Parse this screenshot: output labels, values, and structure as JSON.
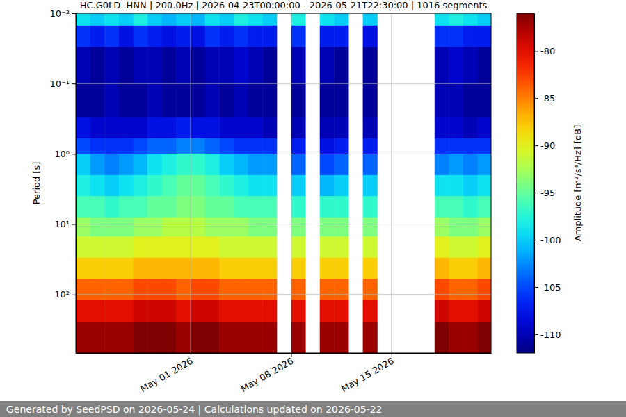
{
  "chart_data": {
    "type": "heatmap",
    "title": "HC.G0LD..HNN | 200.0Hz | 2026-04-23T00:00:00 - 2026-05-21T22:30:00 | 1016 segments",
    "y_label": "Period [s]",
    "colorbar_label": "Amplitude [m²/s⁴/Hz] [dB]",
    "footer": "Generated by SeedPSD on 2026-05-24 | Calculations updated on 2026-05-22",
    "log": "y",
    "grid": true,
    "xlim": [
      "2026-04-23T00:00:00",
      "2026-05-21T22:30:00"
    ],
    "xticks": [
      {
        "value": "2026-05-01T00:00:00",
        "label": "May 01 2026"
      },
      {
        "value": "2026-05-08T00:00:00",
        "label": "May 08 2026"
      },
      {
        "value": "2026-05-15T00:00:00",
        "label": "May 15 2026"
      }
    ],
    "ylim": [
      0.01,
      680
    ],
    "yticks": [
      {
        "value": 0.01,
        "label": "10⁻²"
      },
      {
        "value": 0.1,
        "label": "10⁻¹"
      },
      {
        "value": 1,
        "label": "10⁰"
      },
      {
        "value": 10,
        "label": "10¹"
      },
      {
        "value": 100,
        "label": "10²"
      }
    ],
    "x": [
      "2026-04-23T00:00:00",
      "2026-04-24T00:00:00",
      "2026-04-25T00:00:00",
      "2026-04-26T00:00:00",
      "2026-04-27T00:00:00",
      "2026-04-28T00:00:00",
      "2026-04-29T00:00:00",
      "2026-04-30T00:00:00",
      "2026-05-01T00:00:00",
      "2026-05-02T00:00:00",
      "2026-05-03T00:00:00",
      "2026-05-04T00:00:00",
      "2026-05-05T00:00:00",
      "2026-05-06T00:00:00",
      "2026-05-07T00:00:00",
      "2026-05-08T00:00:00",
      "2026-05-09T00:00:00",
      "2026-05-10T00:00:00",
      "2026-05-11T00:00:00",
      "2026-05-12T00:00:00",
      "2026-05-13T00:00:00",
      "2026-05-14T00:00:00",
      "2026-05-15T00:00:00",
      "2026-05-16T00:00:00",
      "2026-05-17T00:00:00",
      "2026-05-18T00:00:00",
      "2026-05-19T00:00:00",
      "2026-05-20T00:00:00",
      "2026-05-21T00:00:00"
    ],
    "y_edges": [
      0.01,
      0.015,
      0.03,
      0.1,
      0.3,
      0.6,
      1,
      2,
      4,
      8,
      15,
      30,
      60,
      120,
      250,
      680
    ],
    "cells": [
      [
        -99,
        -100,
        -99,
        -100,
        -98,
        -100,
        -101,
        -100,
        -101,
        -99,
        -100,
        -98,
        -99,
        -100,
        null,
        -98,
        null,
        -99,
        -100,
        null,
        -100,
        null,
        null,
        null,
        null,
        -99,
        -98,
        -99,
        -100
      ],
      [
        -106,
        -107,
        -106,
        -108,
        -106,
        -107,
        -108,
        -107,
        -108,
        -106,
        -107,
        -106,
        -107,
        -107,
        null,
        -106,
        null,
        -107,
        -107,
        null,
        -108,
        null,
        null,
        null,
        null,
        -106,
        -106,
        -107,
        -107
      ],
      [
        -110,
        -111,
        -110,
        -111,
        -110,
        -110,
        -111,
        -110,
        -111,
        -110,
        -110,
        -109,
        -110,
        -111,
        null,
        -110,
        null,
        -110,
        -111,
        null,
        -111,
        null,
        null,
        null,
        null,
        -110,
        -109,
        -110,
        -111
      ],
      [
        -111,
        -111,
        -110,
        -111,
        -111,
        -110,
        -111,
        -111,
        -111,
        -110,
        -111,
        -110,
        -111,
        -111,
        null,
        -111,
        null,
        -111,
        -111,
        null,
        -111,
        null,
        null,
        null,
        null,
        -110,
        -110,
        -111,
        -111
      ],
      [
        -108,
        -109,
        -109,
        -109,
        -109,
        -108,
        -108,
        -107,
        -108,
        -108,
        -109,
        -109,
        -109,
        -110,
        null,
        -110,
        null,
        -110,
        -110,
        null,
        -110,
        null,
        null,
        null,
        null,
        -109,
        -109,
        -110,
        -109
      ],
      [
        -105,
        -106,
        -106,
        -106,
        -105,
        -104,
        -104,
        -103,
        -103,
        -104,
        -105,
        -106,
        -106,
        -106,
        null,
        -107,
        null,
        -108,
        -107,
        null,
        -107,
        null,
        null,
        null,
        null,
        -106,
        -106,
        -106,
        -106
      ],
      [
        -100,
        -102,
        -103,
        -102,
        -101,
        -99,
        -98,
        -97,
        -97,
        -98,
        -100,
        -101,
        -102,
        -102,
        null,
        -104,
        null,
        -105,
        -104,
        null,
        -104,
        null,
        null,
        null,
        null,
        -103,
        -102,
        -103,
        -102
      ],
      [
        -98,
        -99,
        -100,
        -99,
        -98,
        -97,
        -96,
        -95,
        -95,
        -96,
        -97,
        -98,
        -99,
        -99,
        null,
        -100,
        null,
        -101,
        -100,
        null,
        -100,
        null,
        null,
        null,
        null,
        -99,
        -99,
        -100,
        -99
      ],
      [
        -96,
        -96,
        -97,
        -96,
        -96,
        -95,
        -95,
        -94,
        -94,
        -95,
        -95,
        -96,
        -96,
        -96,
        null,
        -97,
        null,
        -97,
        -97,
        null,
        -97,
        null,
        null,
        null,
        null,
        -96,
        -96,
        -97,
        -96
      ],
      [
        -93,
        -94,
        -94,
        -94,
        -93,
        -93,
        -92,
        -92,
        -92,
        -93,
        -93,
        -93,
        -94,
        -94,
        null,
        -94,
        null,
        -94,
        -94,
        null,
        -94,
        null,
        null,
        null,
        null,
        -93,
        -94,
        -94,
        -93
      ],
      [
        -91,
        -91,
        -91,
        -91,
        -90,
        -90,
        -90,
        -90,
        -90,
        -90,
        -91,
        -91,
        -91,
        -91,
        null,
        -91,
        null,
        -91,
        -91,
        null,
        -91,
        null,
        null,
        null,
        null,
        -90,
        -91,
        -91,
        -90
      ],
      [
        -88,
        -88,
        -88,
        -88,
        -87,
        -87,
        -87,
        -87,
        -87,
        -87,
        -88,
        -88,
        -88,
        -88,
        null,
        -88,
        null,
        -88,
        -88,
        null,
        -88,
        null,
        null,
        null,
        null,
        -87,
        -88,
        -88,
        -87
      ],
      [
        -84,
        -84,
        -84,
        -84,
        -83,
        -83,
        -83,
        -84,
        -83,
        -83,
        -84,
        -84,
        -84,
        -84,
        null,
        -84,
        null,
        -84,
        -84,
        null,
        -84,
        null,
        null,
        null,
        null,
        -83,
        -84,
        -84,
        -83
      ],
      [
        -80,
        -80,
        -80,
        -80,
        -79,
        -79,
        -79,
        -80,
        -79,
        -79,
        -80,
        -80,
        -80,
        -80,
        null,
        -80,
        null,
        -80,
        -80,
        null,
        -80,
        null,
        null,
        null,
        null,
        -79,
        -80,
        -80,
        -79
      ],
      [
        -77,
        -77,
        -77,
        -77,
        -76,
        -76,
        -76,
        -77,
        -76,
        -76,
        -77,
        -77,
        -77,
        -77,
        null,
        -77,
        null,
        -77,
        -77,
        null,
        -77,
        null,
        null,
        null,
        null,
        -76,
        -77,
        -77,
        -76
      ]
    ],
    "colorbar_lim": [
      -112,
      -76
    ],
    "colorbar_ticks": [
      -80,
      -85,
      -90,
      -95,
      -100,
      -105,
      -110
    ]
  }
}
